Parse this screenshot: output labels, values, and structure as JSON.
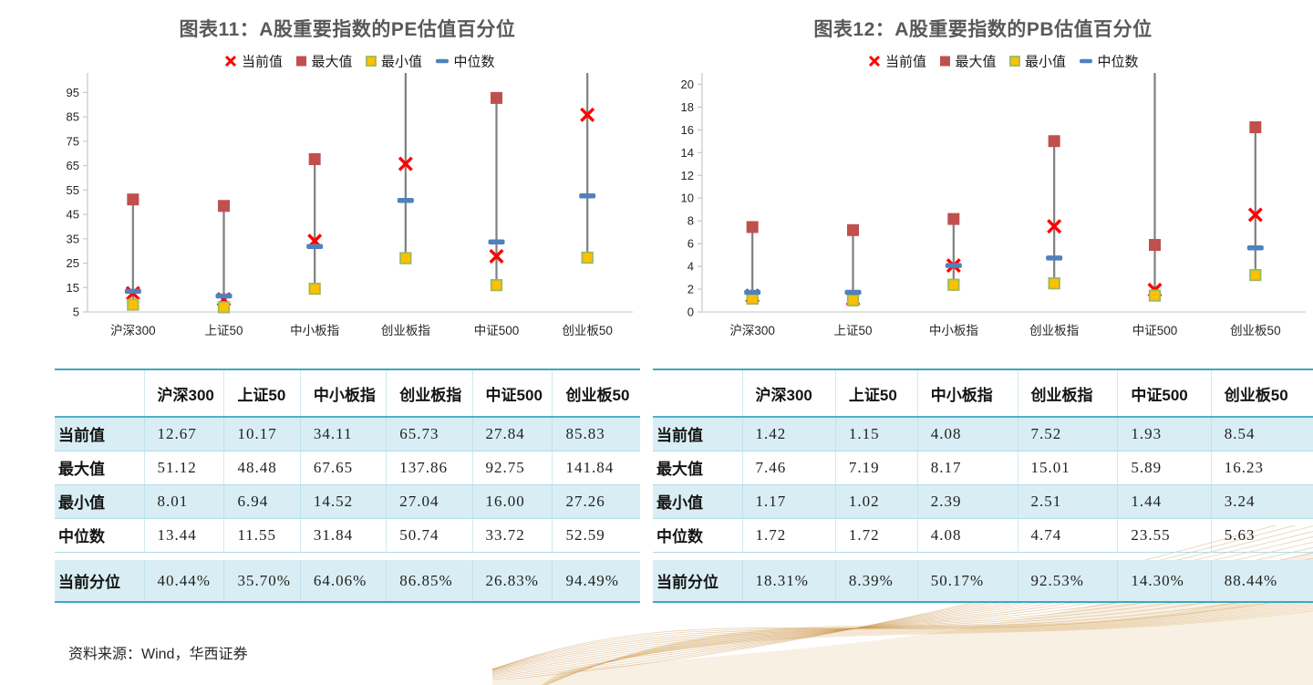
{
  "footer": {
    "source": "资料来源：Wind，华西证券"
  },
  "colors": {
    "title": "#595959",
    "current_x": "#FF0000",
    "max_square": "#C0504D",
    "min_square_fill": "#FFC000",
    "min_square_border": "#9BBB59",
    "median_dash": "#4F81BD",
    "hilo_line": "#7F7F7F",
    "axis": "#C6C6C6",
    "table_band": "#D9EEF4",
    "table_border": "#3FA7C3"
  },
  "chart_data": [
    {
      "type": "hilo-scatter",
      "title": "图表11：A股重要指数的PE估值百分位",
      "categories": [
        "沪深300",
        "上证50",
        "中小板指",
        "创业板指",
        "中证500",
        "创业板50"
      ],
      "series": [
        {
          "name": "当前值",
          "marker": "x",
          "color": "#FF0000",
          "values": [
            12.67,
            10.17,
            34.11,
            65.73,
            27.84,
            85.83
          ]
        },
        {
          "name": "最大值",
          "marker": "square",
          "color": "#C0504D",
          "values": [
            51.12,
            48.48,
            67.65,
            137.86,
            92.75,
            141.84
          ]
        },
        {
          "name": "最小值",
          "marker": "square",
          "color": "#FFC000",
          "border": "#9BBB59",
          "values": [
            8.01,
            6.94,
            14.52,
            27.04,
            16.0,
            27.26
          ]
        },
        {
          "name": "中位数",
          "marker": "dash",
          "color": "#4F81BD",
          "values": [
            13.44,
            11.55,
            31.84,
            50.74,
            33.72,
            52.59
          ]
        }
      ],
      "yticks": [
        5,
        15,
        25,
        35,
        45,
        55,
        65,
        75,
        85,
        95
      ],
      "ylim": [
        5,
        103
      ],
      "grid": false,
      "legend_position": "top"
    },
    {
      "type": "hilo-scatter",
      "title": "图表12：A股重要指数的PB估值百分位",
      "categories": [
        "沪深300",
        "上证50",
        "中小板指",
        "创业板指",
        "中证500",
        "创业板50"
      ],
      "series": [
        {
          "name": "当前值",
          "marker": "x",
          "color": "#FF0000",
          "values": [
            1.42,
            1.15,
            4.08,
            7.52,
            1.93,
            8.54
          ]
        },
        {
          "name": "最大值",
          "marker": "square",
          "color": "#C0504D",
          "values": [
            7.46,
            7.19,
            8.17,
            15.01,
            5.89,
            16.23
          ]
        },
        {
          "name": "最小值",
          "marker": "square",
          "color": "#FFC000",
          "border": "#9BBB59",
          "values": [
            1.17,
            1.02,
            2.39,
            2.51,
            1.44,
            3.24
          ]
        },
        {
          "name": "中位数",
          "marker": "dash",
          "color": "#4F81BD",
          "values": [
            1.72,
            1.72,
            4.08,
            4.74,
            23.55,
            5.63
          ]
        }
      ],
      "yticks": [
        0,
        2,
        4,
        6,
        8,
        10,
        12,
        14,
        16,
        18,
        20
      ],
      "ylim": [
        0,
        21
      ],
      "grid": false,
      "legend_position": "top"
    }
  ],
  "tables": [
    {
      "columns": [
        "沪深300",
        "上证50",
        "中小板指",
        "创业板指",
        "中证500",
        "创业板50"
      ],
      "rows": [
        {
          "label": "当前值",
          "values": [
            "12.67",
            "10.17",
            "34.11",
            "65.73",
            "27.84",
            "85.83"
          ]
        },
        {
          "label": "最大值",
          "values": [
            "51.12",
            "48.48",
            "67.65",
            "137.86",
            "92.75",
            "141.84"
          ]
        },
        {
          "label": "最小值",
          "values": [
            "8.01",
            "6.94",
            "14.52",
            "27.04",
            "16.00",
            "27.26"
          ]
        },
        {
          "label": "中位数",
          "values": [
            "13.44",
            "11.55",
            "31.84",
            "50.74",
            "33.72",
            "52.59"
          ]
        },
        {
          "label": "当前分位",
          "values": [
            "40.44%",
            "35.70%",
            "64.06%",
            "86.85%",
            "26.83%",
            "94.49%"
          ]
        }
      ]
    },
    {
      "columns": [
        "沪深300",
        "上证50",
        "中小板指",
        "创业板指",
        "中证500",
        "创业板50"
      ],
      "rows": [
        {
          "label": "当前值",
          "values": [
            "1.42",
            "1.15",
            "4.08",
            "7.52",
            "1.93",
            "8.54"
          ]
        },
        {
          "label": "最大值",
          "values": [
            "7.46",
            "7.19",
            "8.17",
            "15.01",
            "5.89",
            "16.23"
          ]
        },
        {
          "label": "最小值",
          "values": [
            "1.17",
            "1.02",
            "2.39",
            "2.51",
            "1.44",
            "3.24"
          ]
        },
        {
          "label": "中位数",
          "values": [
            "1.72",
            "1.72",
            "4.08",
            "4.74",
            "23.55",
            "5.63"
          ]
        },
        {
          "label": "当前分位",
          "values": [
            "18.31%",
            "8.39%",
            "50.17%",
            "92.53%",
            "14.30%",
            "88.44%"
          ]
        }
      ]
    }
  ]
}
